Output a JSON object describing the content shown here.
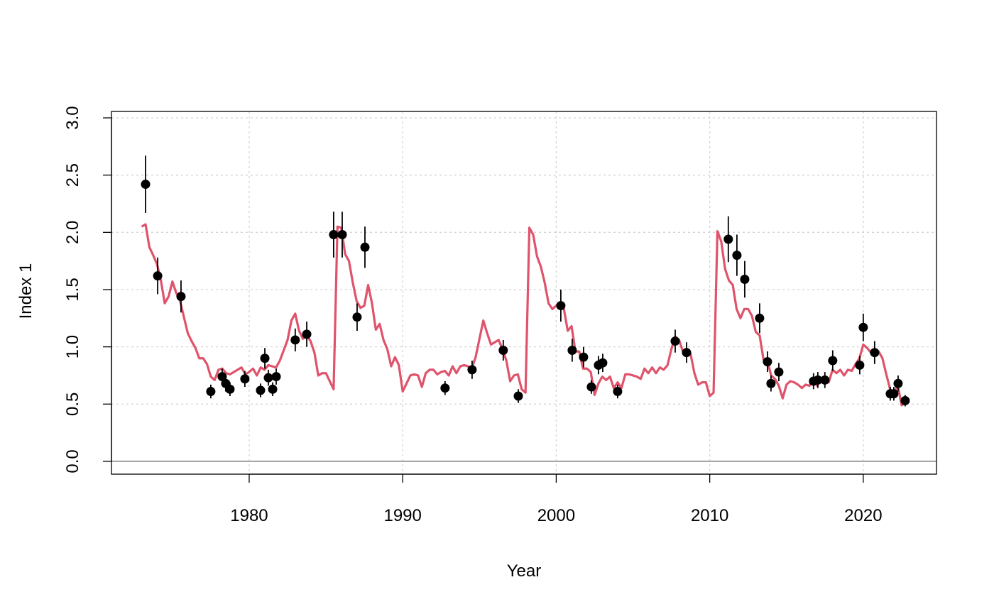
{
  "chart_data": {
    "type": "scatter",
    "x_label": "Year",
    "y_label": "Index 1",
    "xlim": [
      1971.03,
      2024.77
    ],
    "ylim": [
      -0.112,
      3.056
    ],
    "xticks": [
      1980,
      1990,
      2000,
      2010,
      2020
    ],
    "yticks": [
      {
        "value": 0,
        "label": "0.0"
      },
      0.5,
      {
        "value": 1,
        "label": "1.0"
      },
      1.5,
      {
        "value": 2,
        "label": "2.0"
      },
      2.5,
      {
        "value": 3,
        "label": "3.0"
      }
    ],
    "grid": true,
    "hline": 0,
    "series": [
      {
        "type": "scatter",
        "color": "#000000",
        "x": [
          1973.25,
          1974.04,
          1975.56,
          1977.5,
          1978.24,
          1978.47,
          1978.75,
          1979.72,
          1980.74,
          1981.02,
          1981.25,
          1981.53,
          1981.76,
          1983.0,
          1983.75,
          1985.5,
          1986.06,
          1987.03,
          1987.54,
          1992.76,
          1994.52,
          1996.55,
          1997.53,
          2000.3,
          2001.04,
          2001.78,
          2002.29,
          2002.75,
          2003.03,
          2004.0,
          2007.75,
          2008.49,
          2011.21,
          2011.77,
          2012.28,
          2013.25,
          2013.76,
          2013.99,
          2014.5,
          2016.76,
          2017.04,
          2017.5,
          2018.01,
          2019.77,
          2020.0,
          2020.74,
          2021.76,
          2021.99,
          2022.27,
          2022.73
        ],
        "values": [
          2.42,
          1.62,
          1.44,
          0.61,
          0.74,
          0.68,
          0.63,
          0.72,
          0.62,
          0.9,
          0.73,
          0.63,
          0.74,
          1.06,
          1.11,
          1.98,
          1.98,
          1.26,
          1.87,
          0.64,
          0.8,
          0.97,
          0.57,
          1.36,
          0.97,
          0.91,
          0.65,
          0.84,
          0.86,
          0.61,
          1.05,
          0.95,
          1.94,
          1.8,
          1.59,
          1.25,
          0.87,
          0.68,
          0.78,
          0.7,
          0.71,
          0.71,
          0.88,
          0.84,
          1.17,
          0.95,
          0.59,
          0.59,
          0.68,
          0.53
        ],
        "errors": [
          0.25,
          0.16,
          0.14,
          0.06,
          0.07,
          0.07,
          0.06,
          0.07,
          0.06,
          0.09,
          0.07,
          0.06,
          0.07,
          0.1,
          0.11,
          0.2,
          0.2,
          0.12,
          0.18,
          0.06,
          0.08,
          0.09,
          0.06,
          0.14,
          0.1,
          0.09,
          0.06,
          0.08,
          0.08,
          0.06,
          0.1,
          0.09,
          0.2,
          0.18,
          0.16,
          0.13,
          0.09,
          0.07,
          0.08,
          0.07,
          0.07,
          0.07,
          0.09,
          0.08,
          0.12,
          0.1,
          0.06,
          0.06,
          0.07,
          0.05
        ]
      },
      {
        "type": "line",
        "color": "#DF536B",
        "x": [
          1973,
          1973.25,
          1973.5,
          1973.75,
          1974,
          1974.25,
          1974.5,
          1974.75,
          1975,
          1975.25,
          1975.5,
          1975.75,
          1976,
          1976.25,
          1976.5,
          1976.75,
          1977,
          1977.25,
          1977.5,
          1977.75,
          1978,
          1978.25,
          1978.5,
          1978.75,
          1979,
          1979.25,
          1979.5,
          1979.75,
          1980,
          1980.25,
          1980.5,
          1980.75,
          1981,
          1981.25,
          1981.5,
          1981.75,
          1982,
          1982.25,
          1982.5,
          1982.75,
          1983,
          1983.25,
          1983.5,
          1983.75,
          1984,
          1984.25,
          1984.5,
          1984.75,
          1985,
          1985.25,
          1985.5,
          1985.75,
          1986,
          1986.25,
          1986.5,
          1986.75,
          1987,
          1987.25,
          1987.5,
          1987.75,
          1988,
          1988.25,
          1988.5,
          1988.75,
          1989,
          1989.25,
          1989.5,
          1989.75,
          1990,
          1990.25,
          1990.5,
          1990.75,
          1991,
          1991.25,
          1991.5,
          1991.75,
          1992,
          1992.25,
          1992.5,
          1992.75,
          1993,
          1993.25,
          1993.5,
          1993.75,
          1994,
          1994.25,
          1994.5,
          1994.75,
          1995,
          1995.25,
          1995.5,
          1995.75,
          1996,
          1996.25,
          1996.5,
          1996.75,
          1997,
          1997.25,
          1997.5,
          1997.75,
          1998,
          1998.25,
          1998.5,
          1998.75,
          1999,
          1999.25,
          1999.5,
          1999.75,
          2000,
          2000.25,
          2000.5,
          2000.75,
          2001,
          2001.25,
          2001.5,
          2001.75,
          2002,
          2002.25,
          2002.5,
          2002.75,
          2003,
          2003.25,
          2003.5,
          2003.75,
          2004,
          2004.25,
          2004.5,
          2004.75,
          2005,
          2005.25,
          2005.5,
          2005.75,
          2006,
          2006.25,
          2006.5,
          2006.75,
          2007,
          2007.25,
          2007.5,
          2007.75,
          2008,
          2008.25,
          2008.5,
          2008.75,
          2009,
          2009.25,
          2009.5,
          2009.75,
          2010,
          2010.25,
          2010.5,
          2010.75,
          2011,
          2011.25,
          2011.5,
          2011.75,
          2012,
          2012.25,
          2012.5,
          2012.75,
          2013,
          2013.25,
          2013.5,
          2013.75,
          2014,
          2014.25,
          2014.5,
          2014.75,
          2015,
          2015.25,
          2015.5,
          2015.75,
          2016,
          2016.25,
          2016.5,
          2016.75,
          2017,
          2017.25,
          2017.5,
          2017.75,
          2018,
          2018.25,
          2018.5,
          2018.75,
          2019,
          2019.25,
          2019.5,
          2019.75,
          2020,
          2020.25,
          2020.5,
          2020.75,
          2021,
          2021.25,
          2021.5,
          2021.75,
          2022,
          2022.25,
          2022.5,
          2022.75
        ],
        "values": [
          2.05,
          2.07,
          1.87,
          1.8,
          1.72,
          1.58,
          1.38,
          1.44,
          1.57,
          1.47,
          1.4,
          1.26,
          1.12,
          1.05,
          0.99,
          0.9,
          0.9,
          0.85,
          0.74,
          0.71,
          0.8,
          0.81,
          0.77,
          0.76,
          0.78,
          0.8,
          0.82,
          0.76,
          0.78,
          0.81,
          0.75,
          0.82,
          0.8,
          0.84,
          0.83,
          0.82,
          0.88,
          0.97,
          1.06,
          1.23,
          1.29,
          1.14,
          1.07,
          1.1,
          1.05,
          0.95,
          0.75,
          0.77,
          0.77,
          0.7,
          0.63,
          2.05,
          2.04,
          1.81,
          1.75,
          1.56,
          1.4,
          1.34,
          1.36,
          1.54,
          1.38,
          1.15,
          1.2,
          1.06,
          0.98,
          0.83,
          0.91,
          0.84,
          0.61,
          0.68,
          0.75,
          0.76,
          0.75,
          0.65,
          0.77,
          0.8,
          0.8,
          0.76,
          0.78,
          0.79,
          0.75,
          0.83,
          0.77,
          0.83,
          0.84,
          0.83,
          0.81,
          0.91,
          1.07,
          1.23,
          1.12,
          1.02,
          1.04,
          1.06,
          0.98,
          0.88,
          0.7,
          0.75,
          0.76,
          0.63,
          0.6,
          2.04,
          1.98,
          1.79,
          1.7,
          1.56,
          1.38,
          1.33,
          1.36,
          1.39,
          1.33,
          1.14,
          1.18,
          0.96,
          0.96,
          0.81,
          0.81,
          0.78,
          0.58,
          0.68,
          0.74,
          0.71,
          0.74,
          0.64,
          0.69,
          0.64,
          0.76,
          0.76,
          0.75,
          0.74,
          0.72,
          0.81,
          0.77,
          0.82,
          0.77,
          0.82,
          0.8,
          0.84,
          0.98,
          1.09,
          1.06,
          0.96,
          0.94,
          0.94,
          0.77,
          0.67,
          0.69,
          0.69,
          0.57,
          0.6,
          2.01,
          1.92,
          1.68,
          1.58,
          1.54,
          1.33,
          1.25,
          1.33,
          1.33,
          1.27,
          1.13,
          1.1,
          0.89,
          0.88,
          0.75,
          0.72,
          0.66,
          0.55,
          0.67,
          0.7,
          0.69,
          0.67,
          0.64,
          0.67,
          0.66,
          0.73,
          0.66,
          0.73,
          0.72,
          0.69,
          0.8,
          0.77,
          0.8,
          0.75,
          0.8,
          0.79,
          0.85,
          0.9,
          1.02,
          0.99,
          0.95,
          0.92,
          0.96,
          0.9,
          0.76,
          0.63,
          0.6,
          0.66,
          0.49,
          0.51
        ]
      }
    ]
  }
}
